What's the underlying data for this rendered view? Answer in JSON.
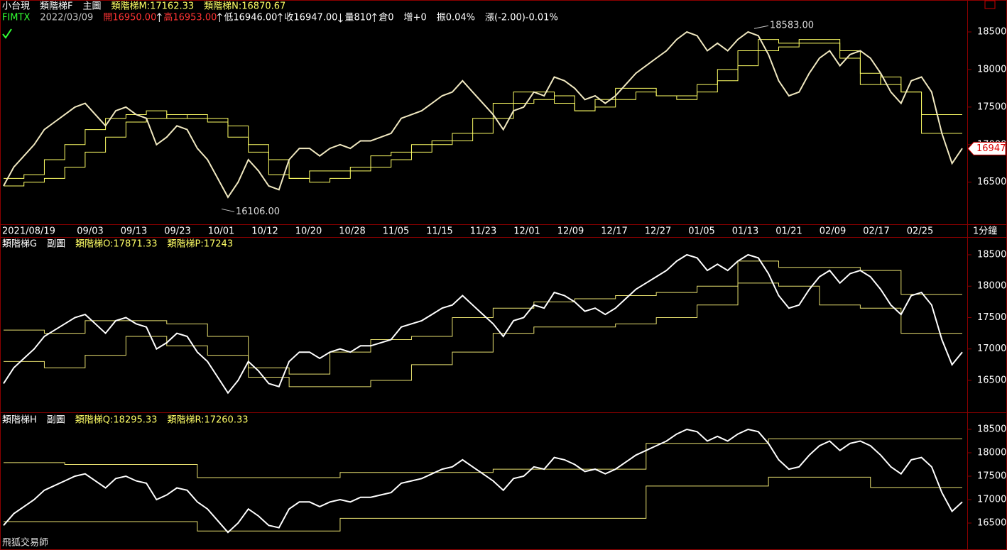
{
  "header": {
    "line1": [
      {
        "text": "小台現",
        "color": "#ffffff"
      },
      {
        "text": "類階梯F",
        "color": "#ffffff"
      },
      {
        "text": "主圖",
        "color": "#ffffff"
      },
      {
        "text": "類階梯M:17162.33",
        "color": "#ffff66"
      },
      {
        "text": "類階梯N:16870.67",
        "color": "#ffff66"
      }
    ],
    "line2": [
      {
        "text": "FIMTX",
        "color": "#33ff33"
      },
      {
        "text": "2022/03/09",
        "color": "#c0c0c0"
      },
      {
        "text": "開16950.00",
        "color": "#ff3333",
        "arrow": "up"
      },
      {
        "text": "高16953.00",
        "color": "#ff3333",
        "arrow": "up"
      },
      {
        "text": "低16946.00",
        "color": "#ffffff",
        "arrow": "up"
      },
      {
        "text": "收16947.00",
        "color": "#ffffff",
        "arrow": "down"
      },
      {
        "text": "量810",
        "color": "#ffffff",
        "arrow": "up"
      },
      {
        "text": "倉0",
        "color": "#ffffff"
      },
      {
        "text": "增+0",
        "color": "#ffffff"
      },
      {
        "text": "振0.04%",
        "color": "#ffffff"
      },
      {
        "text": "漲(-2.00)-0.01%",
        "color": "#ffffff"
      }
    ]
  },
  "x_axis": {
    "labels": [
      "2021/08/19",
      "09/03",
      "09/13",
      "09/23",
      "10/01",
      "10/12",
      "10/20",
      "10/28",
      "11/05",
      "11/15",
      "11/23",
      "12/01",
      "12/09",
      "12/17",
      "12/27",
      "01/05",
      "01/13",
      "01/21",
      "02/09",
      "02/17",
      "02/25"
    ],
    "unit": "1分鐘"
  },
  "price": {
    "values": [
      16450,
      16700,
      16850,
      17000,
      17200,
      17300,
      17400,
      17500,
      17550,
      17400,
      17250,
      17450,
      17500,
      17400,
      17350,
      17000,
      17100,
      17250,
      17200,
      16950,
      16800,
      16550,
      16300,
      16500,
      16800,
      16650,
      16450,
      16400,
      16800,
      16950,
      16950,
      16850,
      16950,
      17000,
      16950,
      17050,
      17050,
      17100,
      17150,
      17350,
      17400,
      17450,
      17550,
      17650,
      17700,
      17850,
      17700,
      17550,
      17400,
      17200,
      17450,
      17500,
      17700,
      17650,
      17900,
      17850,
      17750,
      17600,
      17650,
      17550,
      17650,
      17800,
      17950,
      18050,
      18150,
      18250,
      18400,
      18500,
      18450,
      18250,
      18350,
      18250,
      18400,
      18500,
      18450,
      18200,
      17850,
      17650,
      17700,
      17950,
      18150,
      18250,
      18050,
      18200,
      18250,
      18150,
      17950,
      17700,
      17550,
      17850,
      17900,
      17700,
      17150,
      16750,
      16950
    ]
  },
  "panels": [
    {
      "type": "line",
      "price_color": "#f0e8c0",
      "ylim": [
        15940,
        18925
      ],
      "yticks": [
        16500,
        17000,
        17500,
        18000,
        18500
      ],
      "high": {
        "value": 18583,
        "label": "18583.00"
      },
      "low": {
        "value": 16106,
        "label": "16106.00"
      },
      "last": 16947,
      "steps": [
        {
          "color": "#ffff66",
          "x": [
            0,
            2,
            4,
            6,
            8,
            10,
            12,
            14,
            16,
            18,
            20,
            22,
            24,
            26,
            28,
            30,
            32,
            34,
            36,
            38,
            40,
            42,
            44,
            46,
            48,
            50,
            52,
            54,
            56,
            58,
            60,
            62,
            64,
            66,
            68,
            70,
            72,
            74,
            76,
            78,
            80,
            82,
            84,
            86,
            88,
            90
          ],
          "values": [
            16550,
            16600,
            16800,
            17000,
            17200,
            17350,
            17400,
            17450,
            17350,
            17400,
            17300,
            17100,
            16900,
            16600,
            16550,
            16650,
            16650,
            16700,
            16850,
            16900,
            17000,
            17050,
            17150,
            17350,
            17550,
            17700,
            17700,
            17550,
            17450,
            17600,
            17750,
            17750,
            17650,
            17650,
            17800,
            18000,
            18250,
            18400,
            18350,
            18400,
            18400,
            18150,
            17800,
            17900,
            17700,
            17150
          ]
        },
        {
          "color": "#ffff66",
          "x": [
            0,
            2,
            4,
            6,
            8,
            10,
            12,
            14,
            16,
            18,
            20,
            22,
            24,
            26,
            28,
            30,
            32,
            34,
            36,
            38,
            40,
            42,
            44,
            46,
            48,
            50,
            52,
            54,
            56,
            58,
            60,
            62,
            64,
            66,
            68,
            70,
            72,
            74,
            76,
            78,
            80,
            82,
            84,
            86,
            88,
            90
          ],
          "values": [
            16450,
            16500,
            16550,
            16700,
            16900,
            17100,
            17300,
            17350,
            17400,
            17350,
            17350,
            17250,
            17000,
            16800,
            16550,
            16500,
            16550,
            16650,
            16700,
            16800,
            16900,
            17000,
            17050,
            17150,
            17350,
            17550,
            17600,
            17650,
            17450,
            17500,
            17600,
            17700,
            17650,
            17600,
            17700,
            17850,
            18050,
            18250,
            18300,
            18350,
            18350,
            18250,
            17950,
            17800,
            17700,
            17400
          ]
        }
      ]
    },
    {
      "type": "line",
      "title": [
        {
          "text": "類階梯G",
          "color": "#ffffff"
        },
        {
          "text": "副圖",
          "color": "#ffffff"
        },
        {
          "text": "類階梯O:17871.33",
          "color": "#ffff66"
        },
        {
          "text": "類階梯P:17243",
          "color": "#ffff66"
        }
      ],
      "price_color": "#ffffff",
      "ylim": [
        16025,
        18760
      ],
      "yticks": [
        16500,
        17000,
        17500,
        18000,
        18500
      ],
      "steps": [
        {
          "color": "#e8e070",
          "x": [
            0,
            4,
            8,
            12,
            16,
            20,
            24,
            28,
            32,
            36,
            40,
            44,
            48,
            52,
            56,
            60,
            64,
            68,
            72,
            76,
            80,
            84,
            88
          ],
          "values": [
            17300,
            17250,
            17450,
            17450,
            17400,
            17200,
            16700,
            16600,
            16950,
            17150,
            17200,
            17500,
            17650,
            17750,
            17800,
            17850,
            17900,
            18000,
            18400,
            18300,
            18300,
            18250,
            17870
          ]
        },
        {
          "color": "#e8e070",
          "x": [
            0,
            4,
            8,
            12,
            16,
            20,
            24,
            28,
            32,
            36,
            40,
            44,
            48,
            52,
            56,
            60,
            64,
            68,
            72,
            76,
            80,
            84,
            88
          ],
          "values": [
            16800,
            16700,
            16900,
            17200,
            17050,
            16900,
            16550,
            16400,
            16400,
            16500,
            16750,
            16950,
            17250,
            17350,
            17350,
            17400,
            17500,
            17700,
            18050,
            18000,
            17700,
            17650,
            17250
          ]
        }
      ]
    },
    {
      "type": "line",
      "title": [
        {
          "text": "類階梯H",
          "color": "#ffffff"
        },
        {
          "text": "副圖",
          "color": "#ffffff"
        },
        {
          "text": "類階梯Q:18295.33",
          "color": "#ffff66"
        },
        {
          "text": "類階梯R:17260.33",
          "color": "#ffff66"
        }
      ],
      "price_color": "#ffffff",
      "ylim": [
        15955,
        18818
      ],
      "yticks": [
        16500,
        17000,
        17500,
        18000,
        18500
      ],
      "steps": [
        {
          "color": "#e8e070",
          "x": [
            0,
            6,
            19,
            33,
            48,
            63,
            75
          ],
          "values": [
            17790,
            17750,
            17470,
            17580,
            17650,
            18200,
            18300
          ]
        },
        {
          "color": "#e8e070",
          "x": [
            0,
            19,
            33,
            63,
            75,
            85
          ],
          "values": [
            16530,
            16330,
            16600,
            17290,
            17480,
            17260
          ]
        }
      ]
    }
  ],
  "footer": "飛狐交易師"
}
